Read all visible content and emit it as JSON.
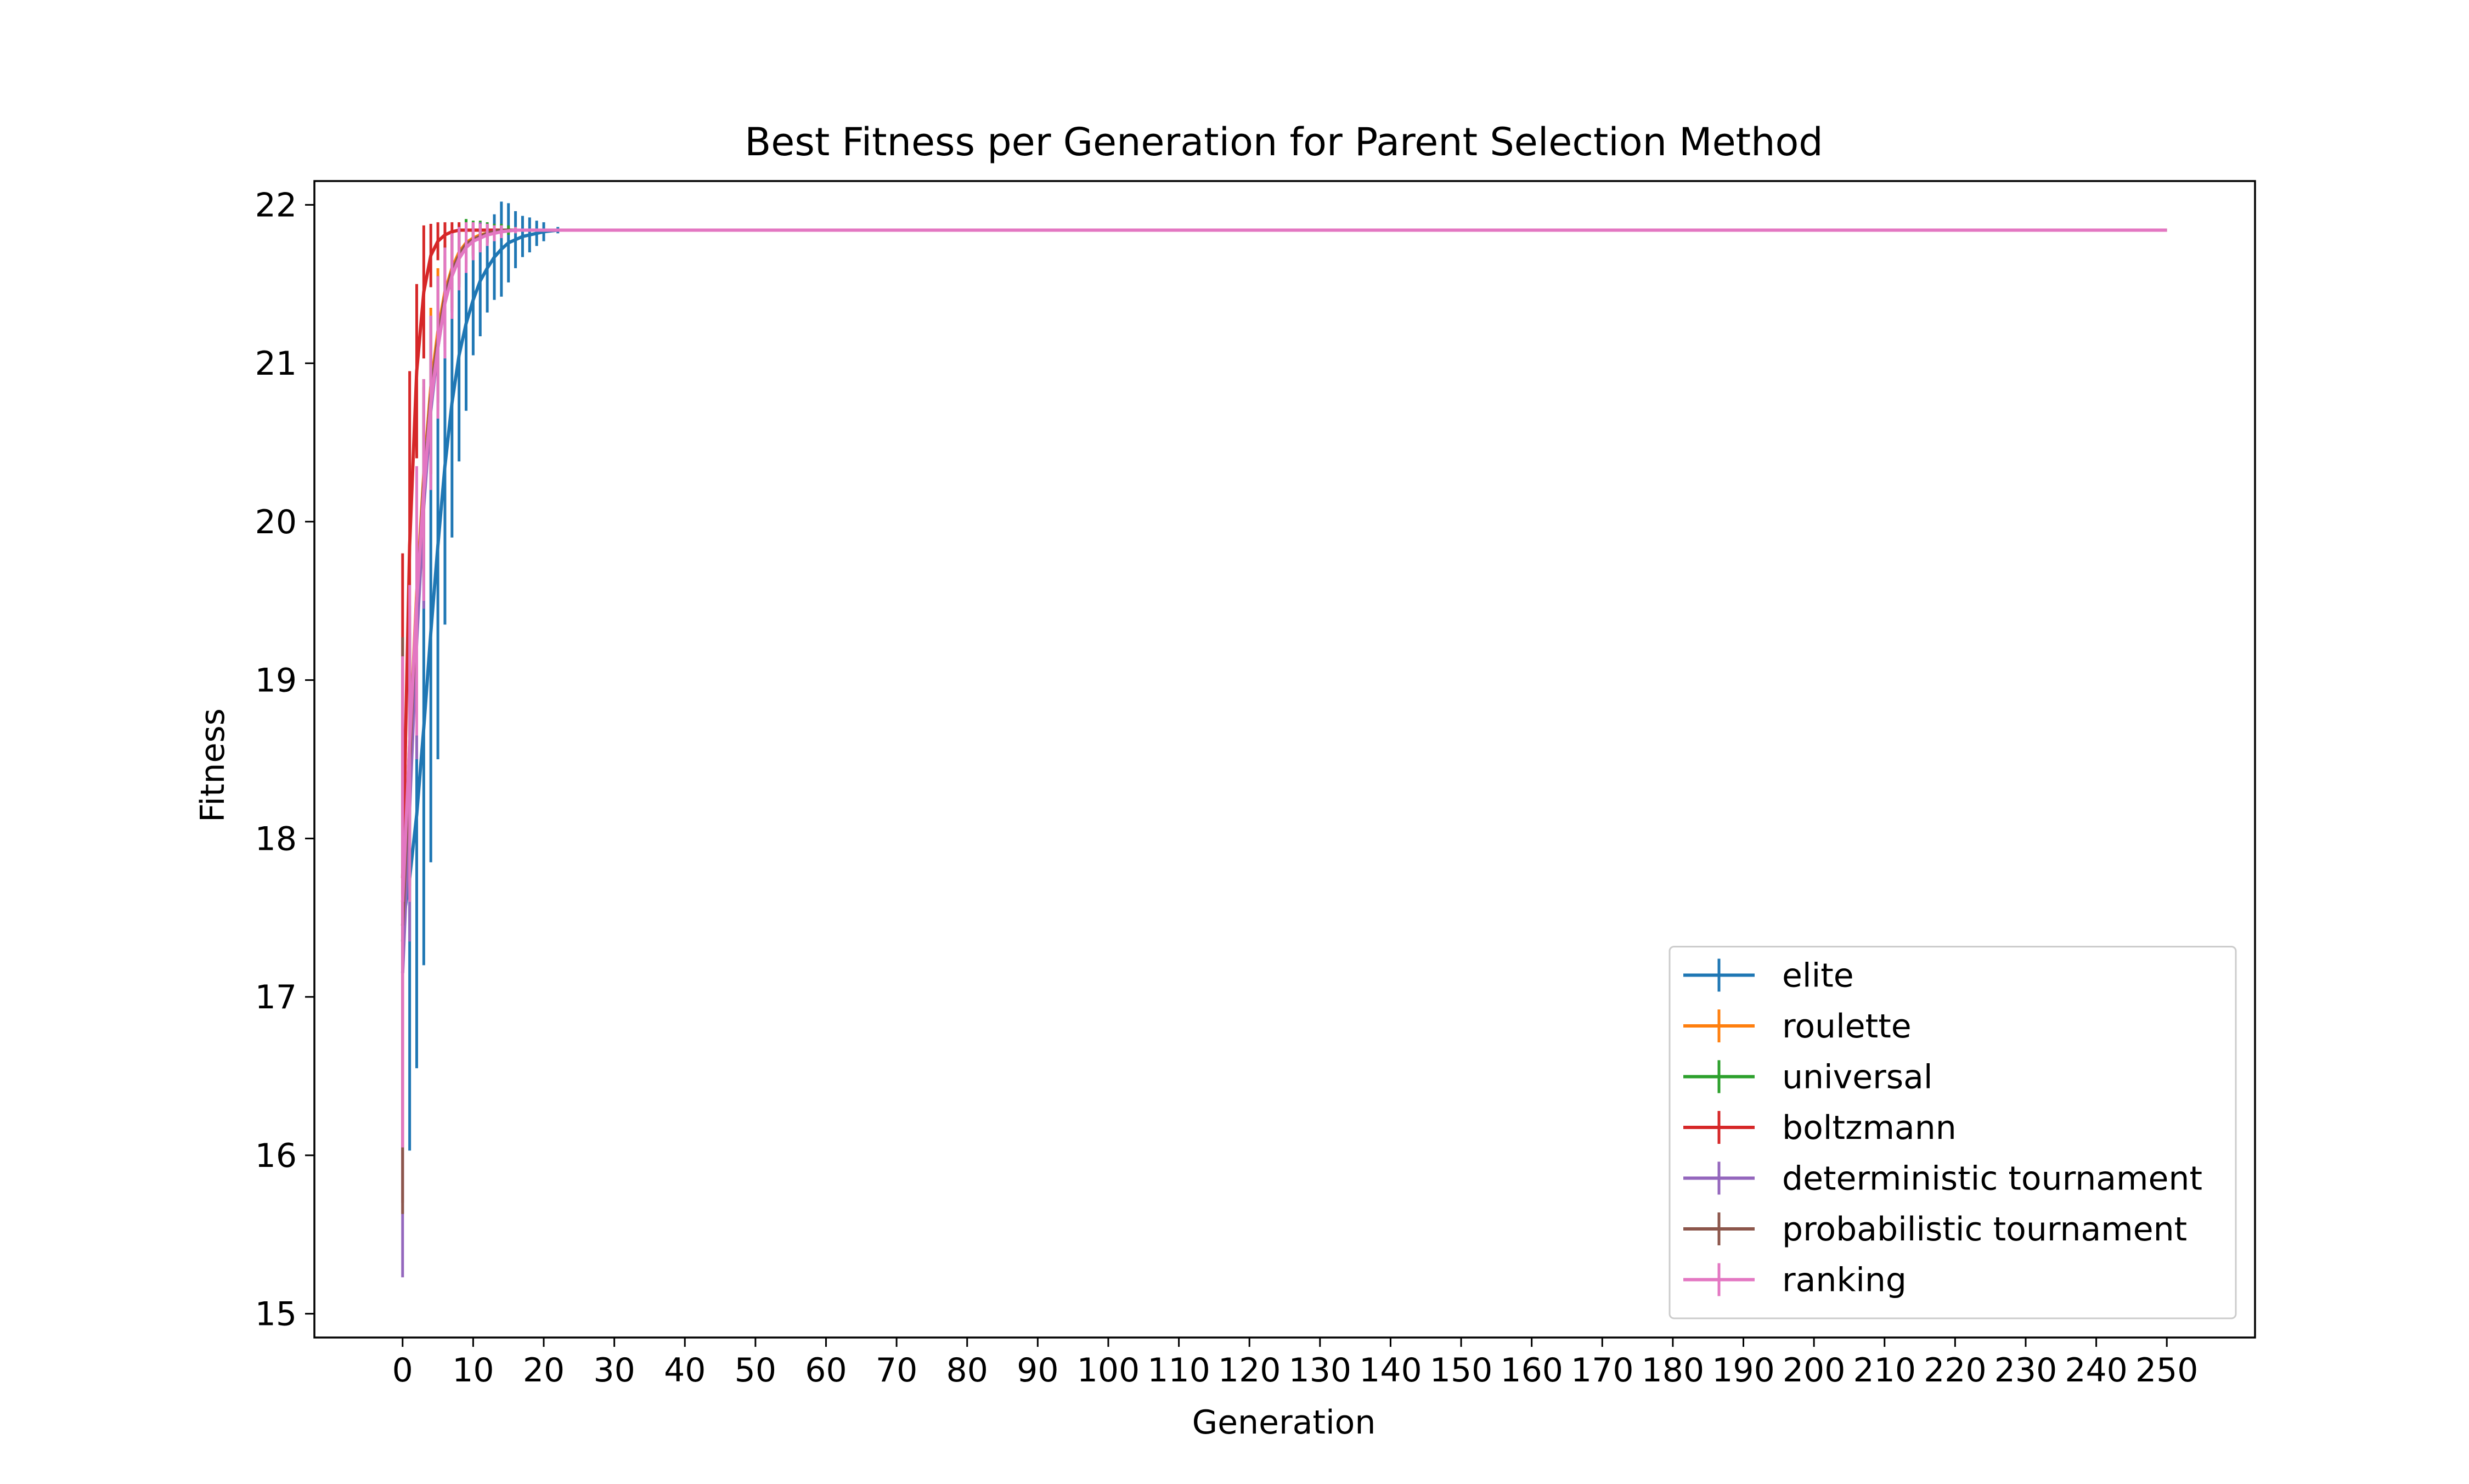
{
  "chart_data": {
    "type": "line",
    "title": "Best Fitness per Generation for Parent Selection Method",
    "xlabel": "Generation",
    "ylabel": "Fitness",
    "xlim": [
      -12.5,
      262.5
    ],
    "ylim": [
      14.85,
      22.15
    ],
    "xticks": [
      0,
      10,
      20,
      30,
      40,
      50,
      60,
      70,
      80,
      90,
      100,
      110,
      120,
      130,
      140,
      150,
      160,
      170,
      180,
      190,
      200,
      210,
      220,
      230,
      240,
      250
    ],
    "yticks": [
      15,
      16,
      17,
      18,
      19,
      20,
      21,
      22
    ],
    "xtick_labels": [
      "0",
      "10",
      "20",
      "30",
      "40",
      "50",
      "60",
      "70",
      "80",
      "90",
      "100",
      "110",
      "120",
      "130",
      "140",
      "150",
      "160",
      "170",
      "180",
      "190",
      "200",
      "210",
      "220",
      "230",
      "240",
      "250"
    ],
    "ytick_labels": [
      "15",
      "16",
      "17",
      "18",
      "19",
      "20",
      "21",
      "22"
    ],
    "grid": false,
    "legend_position": "lower-right",
    "error_bars": true,
    "x_end": 250,
    "series": [
      {
        "name": "elite",
        "color": "#1f77b4",
        "x": [
          0,
          1,
          2,
          3,
          4,
          5,
          6,
          7,
          8,
          9,
          10,
          11,
          12,
          13,
          14,
          15,
          16,
          17,
          18,
          19,
          20,
          22,
          24
        ],
        "y": [
          17.45,
          17.75,
          18.15,
          18.7,
          19.3,
          19.85,
          20.35,
          20.75,
          21.05,
          21.25,
          21.4,
          21.52,
          21.6,
          21.67,
          21.72,
          21.76,
          21.78,
          21.8,
          21.81,
          21.82,
          21.83,
          21.84,
          21.84
        ],
        "err": [
          0.25,
          1.72,
          1.6,
          1.5,
          1.45,
          1.35,
          1.0,
          0.85,
          0.67,
          0.55,
          0.35,
          0.35,
          0.28,
          0.27,
          0.3,
          0.25,
          0.18,
          0.13,
          0.11,
          0.08,
          0.06,
          0.02,
          0.01
        ]
      },
      {
        "name": "roulette",
        "color": "#ff7f0e",
        "x": [
          0,
          1,
          2,
          3,
          4,
          5,
          6,
          7,
          8,
          9,
          10,
          11,
          12,
          13,
          14,
          16,
          18
        ],
        "y": [
          17.6,
          18.6,
          19.55,
          20.3,
          20.85,
          21.2,
          21.45,
          21.6,
          21.7,
          21.76,
          21.79,
          21.81,
          21.82,
          21.83,
          21.84,
          21.84,
          21.84
        ],
        "err": [
          0.3,
          0.8,
          0.7,
          0.6,
          0.5,
          0.4,
          0.3,
          0.22,
          0.17,
          0.13,
          0.1,
          0.08,
          0.06,
          0.04,
          0.03,
          0.01,
          0.0
        ]
      },
      {
        "name": "universal",
        "color": "#2ca02c",
        "x": [
          0,
          1,
          2,
          3,
          4,
          5,
          6,
          7,
          8,
          9,
          10,
          11,
          12,
          13,
          14,
          15,
          16,
          18
        ],
        "y": [
          17.35,
          18.4,
          19.45,
          20.25,
          20.8,
          21.15,
          21.42,
          21.58,
          21.68,
          21.75,
          21.78,
          21.8,
          21.82,
          21.83,
          21.84,
          21.84,
          21.84,
          21.84
        ],
        "err": [
          0.2,
          0.8,
          0.75,
          0.65,
          0.5,
          0.4,
          0.32,
          0.25,
          0.2,
          0.16,
          0.12,
          0.1,
          0.07,
          0.05,
          0.04,
          0.03,
          0.02,
          0.0
        ]
      },
      {
        "name": "boltzmann",
        "color": "#d62728",
        "x": [
          0,
          1,
          2,
          3,
          4,
          5,
          6,
          7,
          8,
          9,
          10,
          12,
          14
        ],
        "y": [
          17.75,
          19.85,
          20.95,
          21.45,
          21.68,
          21.77,
          21.81,
          21.83,
          21.84,
          21.84,
          21.84,
          21.84,
          21.84
        ],
        "err": [
          2.05,
          1.1,
          0.55,
          0.42,
          0.2,
          0.12,
          0.08,
          0.06,
          0.05,
          0.04,
          0.03,
          0.01,
          0.0
        ]
      },
      {
        "name": "deterministic tournament",
        "color": "#9467bd",
        "x": [
          0,
          1,
          2,
          3,
          4,
          5,
          6,
          7,
          8,
          9,
          10,
          11,
          12,
          13,
          14,
          16,
          18
        ],
        "y": [
          17.15,
          18.2,
          19.25,
          20.1,
          20.7,
          21.1,
          21.38,
          21.56,
          21.67,
          21.74,
          21.78,
          21.8,
          21.82,
          21.83,
          21.84,
          21.84,
          21.84
        ],
        "err": [
          1.92,
          0.85,
          0.75,
          0.65,
          0.5,
          0.4,
          0.3,
          0.24,
          0.19,
          0.15,
          0.11,
          0.09,
          0.06,
          0.04,
          0.03,
          0.01,
          0.0
        ]
      },
      {
        "name": "probabilistic tournament",
        "color": "#8c564b",
        "x": [
          0,
          1,
          2,
          3,
          4,
          5,
          6,
          7,
          8,
          9,
          10,
          11,
          12,
          13,
          14,
          16,
          18
        ],
        "y": [
          17.45,
          18.5,
          19.5,
          20.25,
          20.8,
          21.15,
          21.42,
          21.58,
          21.68,
          21.75,
          21.78,
          21.8,
          21.82,
          21.83,
          21.84,
          21.84,
          21.84
        ],
        "err": [
          1.82,
          0.8,
          0.7,
          0.6,
          0.5,
          0.4,
          0.3,
          0.23,
          0.18,
          0.14,
          0.1,
          0.08,
          0.06,
          0.04,
          0.03,
          0.01,
          0.0
        ]
      },
      {
        "name": "ranking",
        "color": "#e377c2",
        "x": [
          0,
          1,
          2,
          3,
          4,
          5,
          6,
          7,
          8,
          9,
          10,
          11,
          12,
          13,
          14,
          16,
          18,
          20,
          22
        ],
        "y": [
          17.6,
          18.6,
          19.5,
          20.2,
          20.75,
          21.1,
          21.38,
          21.55,
          21.66,
          21.73,
          21.77,
          21.79,
          21.81,
          21.82,
          21.83,
          21.84,
          21.84,
          21.84,
          21.84
        ],
        "err": [
          1.55,
          1.0,
          0.85,
          0.7,
          0.55,
          0.45,
          0.35,
          0.27,
          0.2,
          0.16,
          0.12,
          0.09,
          0.07,
          0.05,
          0.04,
          0.02,
          0.01,
          0.0,
          0.0
        ]
      }
    ]
  }
}
